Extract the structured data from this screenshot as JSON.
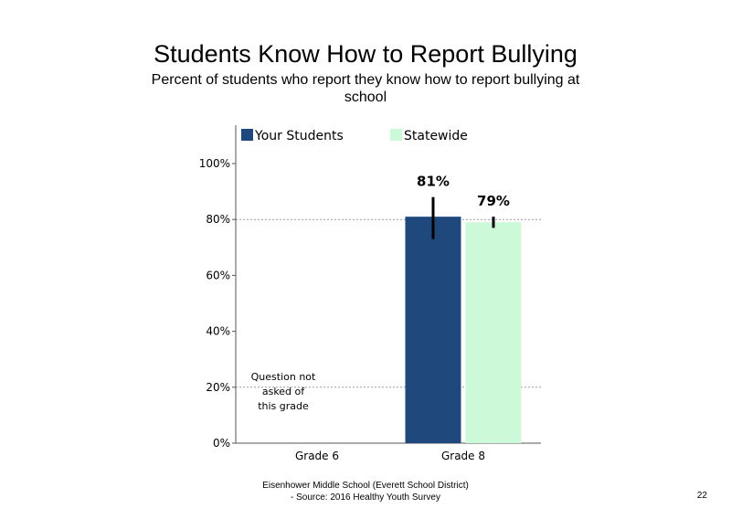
{
  "title": "Students Know How to Report Bullying",
  "subtitle": "Percent of students  who report they know how to report bullying at school",
  "footer": {
    "line1": "Eisenhower Middle School (Everett School District)",
    "line2": "- Source: 2016 Healthy  Youth Survey"
  },
  "page_number": "22",
  "chart_data": {
    "type": "bar",
    "categories": [
      "Grade 6",
      "Grade 8"
    ],
    "series": [
      {
        "name": "Your Students",
        "color": "#1f497d",
        "values": [
          null,
          81
        ],
        "labels": [
          "",
          "81%"
        ],
        "error": [
          null,
          [
            73,
            88
          ]
        ]
      },
      {
        "name": "Statewide",
        "color": "#ccf9d8",
        "values": [
          null,
          79
        ],
        "labels": [
          "",
          "79%"
        ],
        "error": [
          null,
          [
            77,
            81
          ]
        ]
      }
    ],
    "ylim": [
      0,
      100
    ],
    "yticks": [
      "0%",
      "20%",
      "40%",
      "60%",
      "80%",
      "100%"
    ],
    "ytick_values": [
      0,
      20,
      40,
      60,
      80,
      100
    ],
    "grid": "dotted horizontal at 20% and 80%",
    "legend": "top",
    "annotations": [
      {
        "category": "Grade 6",
        "text_lines": [
          "Question not",
          "asked of",
          "this grade"
        ]
      }
    ]
  }
}
